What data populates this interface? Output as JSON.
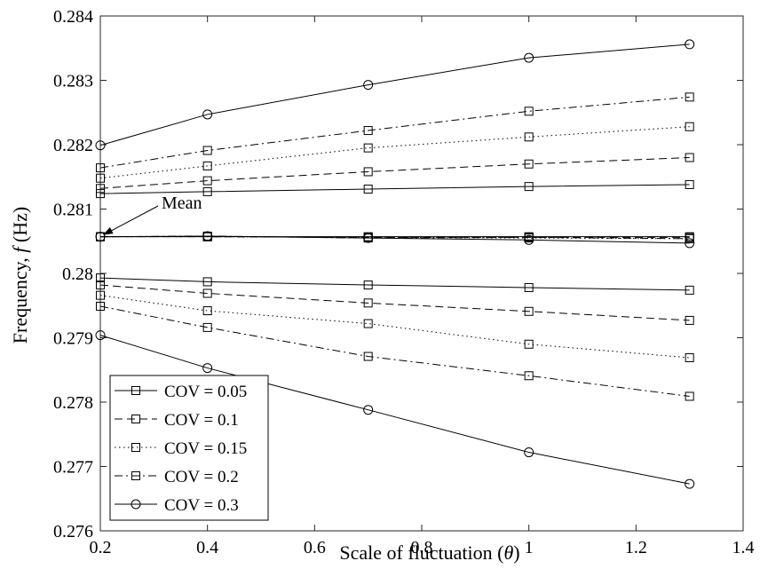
{
  "chart_data": {
    "type": "line",
    "xlabel": "Scale of fluctuation",
    "xlabel_symbol": "θ",
    "ylabel": "Frequency,",
    "ylabel_symbol": "f",
    "ylabel_unit": "(Hz)",
    "xlim": [
      0.2,
      1.4
    ],
    "ylim": [
      0.276,
      0.284
    ],
    "xticks": [
      "0.2",
      "0.4",
      "0.6",
      "0.8",
      "1",
      "1.2",
      "1.4"
    ],
    "yticks": [
      "0.276",
      "0.277",
      "0.278",
      "0.279",
      "0.28",
      "0.281",
      "0.282",
      "0.283",
      "0.284"
    ],
    "grid": false,
    "legend_position": "bottom-left",
    "x": [
      0.2,
      0.4,
      0.7,
      1.0,
      1.3
    ],
    "annotation": {
      "text": "Mean",
      "x": 0.2,
      "y": 0.28057
    },
    "series": [
      {
        "name": "COV = 0.05",
        "line_style": "solid",
        "marker": "square",
        "upper": [
          0.28124,
          0.28127,
          0.28131,
          0.28135,
          0.28138
        ],
        "mean": [
          0.28057,
          0.28057,
          0.28057,
          0.28057,
          0.28057
        ],
        "lower": [
          0.27993,
          0.27987,
          0.27982,
          0.27978,
          0.27974
        ]
      },
      {
        "name": "COV = 0.1",
        "line_style": "dashed",
        "marker": "square",
        "upper": [
          0.28132,
          0.28144,
          0.28158,
          0.2817,
          0.2818
        ],
        "mean": [
          0.28057,
          0.28057,
          0.28056,
          0.28056,
          0.28056
        ],
        "lower": [
          0.27982,
          0.27969,
          0.27954,
          0.27941,
          0.27927
        ]
      },
      {
        "name": "COV = 0.15",
        "line_style": "dotted",
        "marker": "square",
        "upper": [
          0.28148,
          0.28167,
          0.28195,
          0.28212,
          0.28228
        ],
        "mean": [
          0.28057,
          0.28057,
          0.28056,
          0.28055,
          0.28054
        ],
        "lower": [
          0.27966,
          0.27942,
          0.27922,
          0.2789,
          0.27869
        ]
      },
      {
        "name": "COV = 0.2",
        "line_style": "dashdot",
        "marker": "square",
        "upper": [
          0.28164,
          0.28191,
          0.28222,
          0.28252,
          0.28274
        ],
        "mean": [
          0.28057,
          0.28058,
          0.28055,
          0.28056,
          0.28054
        ],
        "lower": [
          0.27949,
          0.27916,
          0.27871,
          0.27841,
          0.27809
        ]
      },
      {
        "name": "COV = 0.3",
        "line_style": "solid",
        "marker": "circle",
        "upper": [
          0.28199,
          0.28247,
          0.28293,
          0.28335,
          0.28356
        ],
        "mean": [
          0.28057,
          0.28058,
          0.28055,
          0.28052,
          0.28047
        ],
        "lower": [
          0.27904,
          0.27853,
          0.27788,
          0.27722,
          0.27673
        ]
      }
    ]
  }
}
